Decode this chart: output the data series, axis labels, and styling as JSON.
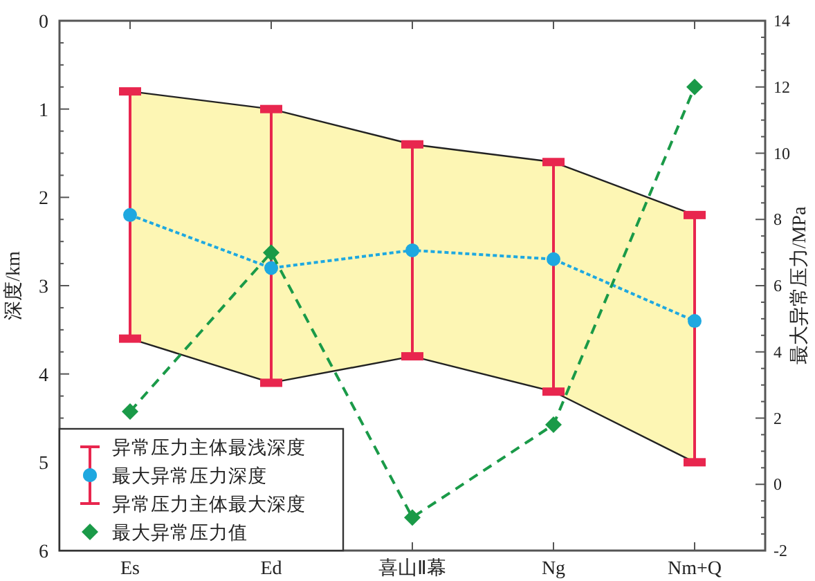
{
  "chart_data": {
    "type": "line",
    "categories": [
      "Es",
      "Ed",
      "喜山Ⅱ幕",
      "Ng",
      "Nm+Q"
    ],
    "ylabel": "深度/km",
    "y2label": "最大异常压力/MPa",
    "ylim": [
      6,
      0
    ],
    "yticks": [
      0,
      1,
      2,
      3,
      4,
      5,
      6
    ],
    "y2lim": [
      -2,
      14
    ],
    "y2ticks": [
      -2,
      0,
      2,
      4,
      6,
      8,
      10,
      12,
      14
    ],
    "grid": false,
    "legend": "bottom left",
    "series": [
      {
        "name": "异常压力主体最浅深度",
        "color": "#e8264e",
        "marker": "square",
        "values": [
          0.8,
          1.0,
          1.4,
          1.6,
          2.2
        ]
      },
      {
        "name": "最大异常压力深度",
        "color": "#1ea8e0",
        "marker": "circle",
        "line_style": "dotted",
        "values": [
          2.2,
          2.8,
          2.6,
          2.7,
          3.4
        ],
        "errors": [
          [
            0.8,
            3.6
          ],
          [
            1.0,
            4.1
          ],
          [
            1.4,
            3.8
          ],
          [
            1.6,
            4.2
          ],
          [
            2.2,
            5.0
          ]
        ],
        "lower": [
          0.8,
          1.0,
          1.4,
          1.6,
          2.2
        ],
        "upper": [
          3.6,
          4.1,
          3.8,
          4.2,
          5.0
        ]
      },
      {
        "name": "异常压力主体最大深度",
        "color": "#e8264e",
        "marker": "square",
        "values": [
          3.6,
          4.1,
          3.8,
          4.2,
          5.0
        ]
      },
      {
        "name": "最大异常压力值",
        "axis": "y2",
        "color": "#1a9a48",
        "marker": "diamond",
        "line_style": "dashed",
        "values": [
          2.2,
          7.0,
          -1.0,
          1.8,
          12.0
        ]
      }
    ]
  }
}
